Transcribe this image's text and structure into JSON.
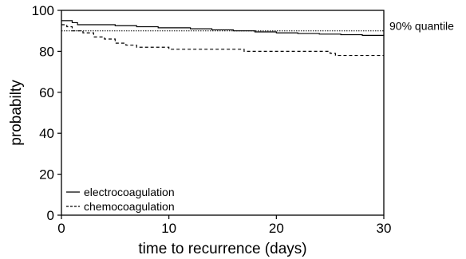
{
  "chart_data": {
    "type": "line",
    "title": "",
    "xlabel": "time to recurrence (days)",
    "ylabel": "probabilty",
    "xlim": [
      0,
      30
    ],
    "ylim": [
      0,
      100
    ],
    "x_ticks": [
      0,
      10,
      20,
      30
    ],
    "y_ticks": [
      0,
      20,
      40,
      60,
      80,
      100
    ],
    "x_tick_labels": [
      "0",
      "10",
      "20",
      "30"
    ],
    "y_tick_labels": [
      "0",
      "20",
      "40",
      "60",
      "80",
      "100"
    ],
    "grid": false,
    "legend_position": "bottom-left",
    "reference_line": {
      "y": 90,
      "label": "90% quantile"
    },
    "series": [
      {
        "name": "electrocoagulation",
        "style": "solid",
        "color": "#000000",
        "step": true,
        "points": [
          [
            0,
            95
          ],
          [
            1,
            94
          ],
          [
            1.5,
            93
          ],
          [
            5,
            92.5
          ],
          [
            7,
            92
          ],
          [
            9,
            91.5
          ],
          [
            12,
            91
          ],
          [
            14,
            90.5
          ],
          [
            16,
            90
          ],
          [
            18,
            89.5
          ],
          [
            20,
            89
          ],
          [
            22,
            88.7
          ],
          [
            24,
            88.4
          ],
          [
            26,
            88.1
          ],
          [
            28,
            87.8
          ],
          [
            30,
            87.5
          ]
        ]
      },
      {
        "name": "chemocoagulation",
        "style": "dashed",
        "color": "#000000",
        "step": true,
        "points": [
          [
            0,
            93
          ],
          [
            0.5,
            92
          ],
          [
            1,
            90
          ],
          [
            2,
            89
          ],
          [
            3,
            87
          ],
          [
            4,
            86
          ],
          [
            5,
            84
          ],
          [
            6,
            83
          ],
          [
            7,
            82
          ],
          [
            10,
            81
          ],
          [
            17,
            80
          ],
          [
            25,
            79
          ],
          [
            25.5,
            78
          ],
          [
            30,
            78
          ]
        ]
      }
    ]
  }
}
